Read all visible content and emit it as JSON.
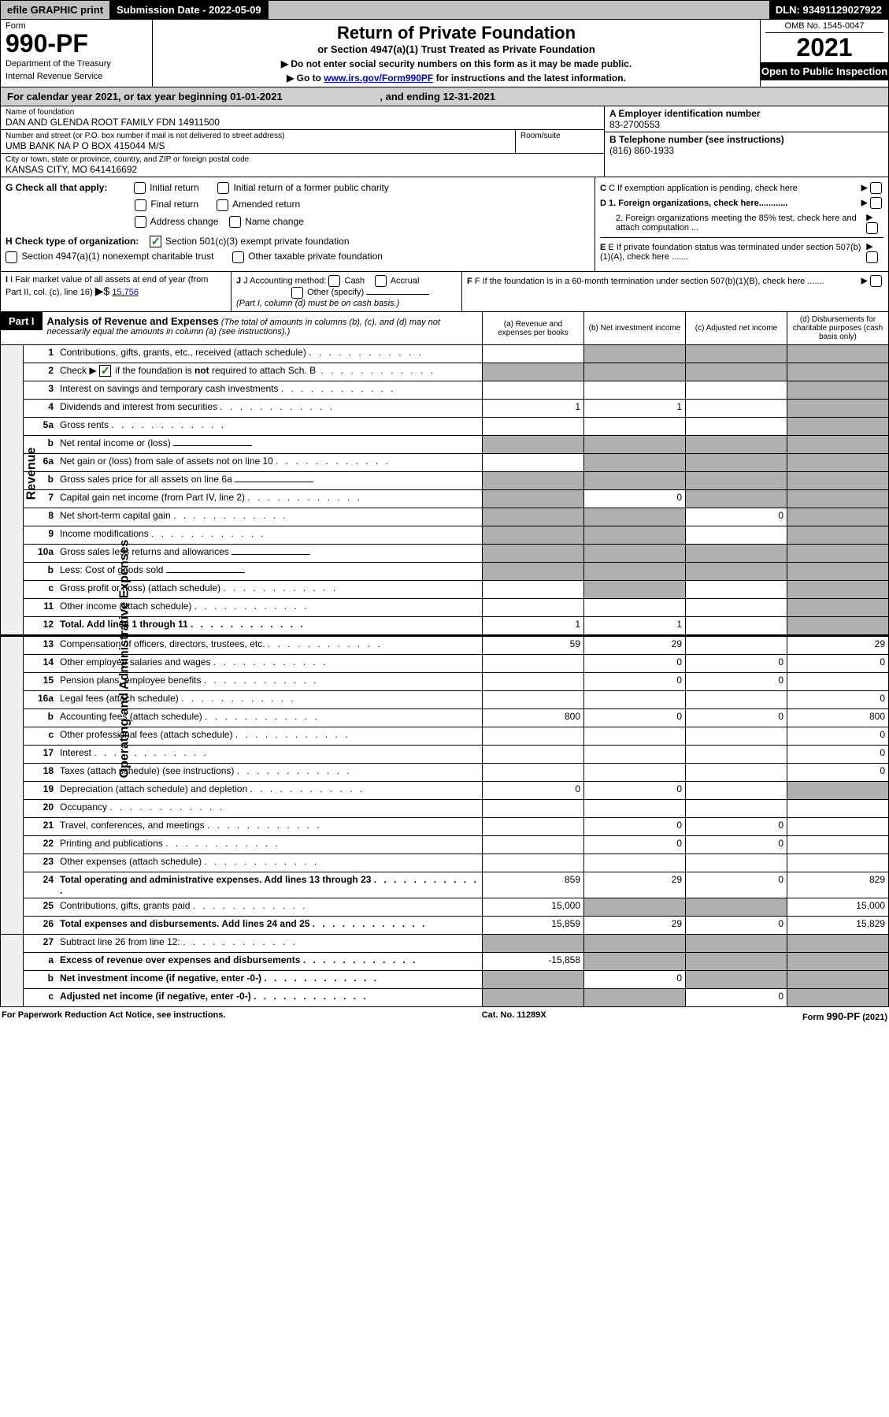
{
  "top_bar": {
    "efile": "efile GRAPHIC print",
    "submission": "Submission Date - 2022-05-09",
    "dln": "DLN: 93491129027922"
  },
  "header": {
    "form_label": "Form",
    "form_number": "990-PF",
    "dept": "Department of the Treasury",
    "irs": "Internal Revenue Service",
    "title": "Return of Private Foundation",
    "subtitle": "or Section 4947(a)(1) Trust Treated as Private Foundation",
    "inst1": "▶ Do not enter social security numbers on this form as it may be made public.",
    "inst2_prefix": "▶ Go to ",
    "inst2_link": "www.irs.gov/Form990PF",
    "inst2_suffix": " for instructions and the latest information.",
    "omb": "OMB No. 1545-0047",
    "year": "2021",
    "open": "Open to Public Inspection"
  },
  "calendar": {
    "text_a": "For calendar year 2021, or tax year beginning 01-01-2021",
    "text_b": ", and ending 12-31-2021"
  },
  "info": {
    "name_label": "Name of foundation",
    "name": "DAN AND GLENDA ROOT FAMILY FDN 14911500",
    "addr_label": "Number and street (or P.O. box number if mail is not delivered to street address)",
    "addr": "UMB BANK NA P O BOX 415044 M/S",
    "room_label": "Room/suite",
    "city_label": "City or town, state or province, country, and ZIP or foreign postal code",
    "city": "KANSAS CITY, MO  641416692",
    "ein_label": "A Employer identification number",
    "ein": "83-2700553",
    "phone_label": "B Telephone number (see instructions)",
    "phone": "(816) 860-1933",
    "c_label": "C If exemption application is pending, check here",
    "d1": "D 1. Foreign organizations, check here............",
    "d2": "2. Foreign organizations meeting the 85% test, check here and attach computation ...",
    "e_label": "E  If private foundation status was terminated under section 507(b)(1)(A), check here .......",
    "f_label": "F  If the foundation is in a 60-month termination under section 507(b)(1)(B), check here ......."
  },
  "g_section": {
    "label": "G Check all that apply:",
    "opts": [
      "Initial return",
      "Initial return of a former public charity",
      "Final return",
      "Amended return",
      "Address change",
      "Name change"
    ]
  },
  "h_section": {
    "label": "H Check type of organization:",
    "opt1": "Section 501(c)(3) exempt private foundation",
    "opt2": "Section 4947(a)(1) nonexempt charitable trust",
    "opt3": "Other taxable private foundation"
  },
  "i_section": {
    "label": "I Fair market value of all assets at end of year (from Part II, col. (c), line 16)",
    "arrow": "▶$",
    "value": "15,756"
  },
  "j_section": {
    "label": "J Accounting method:",
    "cash": "Cash",
    "accrual": "Accrual",
    "other": "Other (specify)",
    "note": "(Part I, column (d) must be on cash basis.)"
  },
  "part1": {
    "label": "Part I",
    "title": "Analysis of Revenue and Expenses",
    "note": "(The total of amounts in columns (b), (c), and (d) may not necessarily equal the amounts in column (a) (see instructions).)",
    "col_a": "(a) Revenue and expenses per books",
    "col_b": "(b) Net investment income",
    "col_c": "(c) Adjusted net income",
    "col_d": "(d) Disbursements for charitable purposes (cash basis only)"
  },
  "side_labels": {
    "revenue": "Revenue",
    "expenses": "Operating and Administrative Expenses"
  },
  "revenue_lines": [
    {
      "num": "1",
      "desc": "Contributions, gifts, grants, etc., received (attach schedule)",
      "a": "",
      "b": "grey",
      "c": "grey",
      "d": "grey"
    },
    {
      "num": "2",
      "desc": "Check ▶ ☑ if the foundation is not required to attach Sch. B",
      "a": "grey",
      "b": "grey",
      "c": "grey",
      "d": "grey",
      "checkbox": true
    },
    {
      "num": "3",
      "desc": "Interest on savings and temporary cash investments",
      "a": "",
      "b": "",
      "c": "",
      "d": "grey"
    },
    {
      "num": "4",
      "desc": "Dividends and interest from securities",
      "a": "1",
      "b": "1",
      "c": "",
      "d": "grey"
    },
    {
      "num": "5a",
      "desc": "Gross rents",
      "a": "",
      "b": "",
      "c": "",
      "d": "grey"
    },
    {
      "num": "b",
      "desc": "Net rental income or (loss)",
      "a": "grey",
      "b": "grey",
      "c": "grey",
      "d": "grey",
      "inline_box": true
    },
    {
      "num": "6a",
      "desc": "Net gain or (loss) from sale of assets not on line 10",
      "a": "",
      "b": "grey",
      "c": "grey",
      "d": "grey"
    },
    {
      "num": "b",
      "desc": "Gross sales price for all assets on line 6a",
      "a": "grey",
      "b": "grey",
      "c": "grey",
      "d": "grey",
      "inline_box": true
    },
    {
      "num": "7",
      "desc": "Capital gain net income (from Part IV, line 2)",
      "a": "grey",
      "b": "0",
      "c": "grey",
      "d": "grey"
    },
    {
      "num": "8",
      "desc": "Net short-term capital gain",
      "a": "grey",
      "b": "grey",
      "c": "0",
      "d": "grey"
    },
    {
      "num": "9",
      "desc": "Income modifications",
      "a": "grey",
      "b": "grey",
      "c": "",
      "d": "grey"
    },
    {
      "num": "10a",
      "desc": "Gross sales less returns and allowances",
      "a": "grey",
      "b": "grey",
      "c": "grey",
      "d": "grey",
      "inline_box": true
    },
    {
      "num": "b",
      "desc": "Less: Cost of goods sold",
      "a": "grey",
      "b": "grey",
      "c": "grey",
      "d": "grey",
      "inline_box": true
    },
    {
      "num": "c",
      "desc": "Gross profit or (loss) (attach schedule)",
      "a": "",
      "b": "grey",
      "c": "",
      "d": "grey"
    },
    {
      "num": "11",
      "desc": "Other income (attach schedule)",
      "a": "",
      "b": "",
      "c": "",
      "d": "grey"
    },
    {
      "num": "12",
      "desc": "Total. Add lines 1 through 11",
      "a": "1",
      "b": "1",
      "c": "",
      "d": "grey",
      "bold": true
    }
  ],
  "expense_lines": [
    {
      "num": "13",
      "desc": "Compensation of officers, directors, trustees, etc.",
      "a": "59",
      "b": "29",
      "c": "",
      "d": "29"
    },
    {
      "num": "14",
      "desc": "Other employee salaries and wages",
      "a": "",
      "b": "0",
      "c": "0",
      "d": "0"
    },
    {
      "num": "15",
      "desc": "Pension plans, employee benefits",
      "a": "",
      "b": "0",
      "c": "0",
      "d": ""
    },
    {
      "num": "16a",
      "desc": "Legal fees (attach schedule)",
      "a": "",
      "b": "",
      "c": "",
      "d": "0"
    },
    {
      "num": "b",
      "desc": "Accounting fees (attach schedule)",
      "a": "800",
      "b": "0",
      "c": "0",
      "d": "800"
    },
    {
      "num": "c",
      "desc": "Other professional fees (attach schedule)",
      "a": "",
      "b": "",
      "c": "",
      "d": "0"
    },
    {
      "num": "17",
      "desc": "Interest",
      "a": "",
      "b": "",
      "c": "",
      "d": "0"
    },
    {
      "num": "18",
      "desc": "Taxes (attach schedule) (see instructions)",
      "a": "",
      "b": "",
      "c": "",
      "d": "0"
    },
    {
      "num": "19",
      "desc": "Depreciation (attach schedule) and depletion",
      "a": "0",
      "b": "0",
      "c": "",
      "d": "grey"
    },
    {
      "num": "20",
      "desc": "Occupancy",
      "a": "",
      "b": "",
      "c": "",
      "d": ""
    },
    {
      "num": "21",
      "desc": "Travel, conferences, and meetings",
      "a": "",
      "b": "0",
      "c": "0",
      "d": ""
    },
    {
      "num": "22",
      "desc": "Printing and publications",
      "a": "",
      "b": "0",
      "c": "0",
      "d": ""
    },
    {
      "num": "23",
      "desc": "Other expenses (attach schedule)",
      "a": "",
      "b": "",
      "c": "",
      "d": ""
    },
    {
      "num": "24",
      "desc": "Total operating and administrative expenses. Add lines 13 through 23",
      "a": "859",
      "b": "29",
      "c": "0",
      "d": "829",
      "bold": true
    },
    {
      "num": "25",
      "desc": "Contributions, gifts, grants paid",
      "a": "15,000",
      "b": "grey",
      "c": "grey",
      "d": "15,000"
    },
    {
      "num": "26",
      "desc": "Total expenses and disbursements. Add lines 24 and 25",
      "a": "15,859",
      "b": "29",
      "c": "0",
      "d": "15,829",
      "bold": true
    }
  ],
  "net_lines": [
    {
      "num": "27",
      "desc": "Subtract line 26 from line 12:",
      "a": "grey",
      "b": "grey",
      "c": "grey",
      "d": "grey"
    },
    {
      "num": "a",
      "desc": "Excess of revenue over expenses and disbursements",
      "a": "-15,858",
      "b": "grey",
      "c": "grey",
      "d": "grey",
      "bold": true
    },
    {
      "num": "b",
      "desc": "Net investment income (if negative, enter -0-)",
      "a": "grey",
      "b": "0",
      "c": "grey",
      "d": "grey",
      "bold": true
    },
    {
      "num": "c",
      "desc": "Adjusted net income (if negative, enter -0-)",
      "a": "grey",
      "b": "grey",
      "c": "0",
      "d": "grey",
      "bold": true
    }
  ],
  "footer": {
    "left": "For Paperwork Reduction Act Notice, see instructions.",
    "center": "Cat. No. 11289X",
    "right": "Form 990-PF (2021)"
  }
}
